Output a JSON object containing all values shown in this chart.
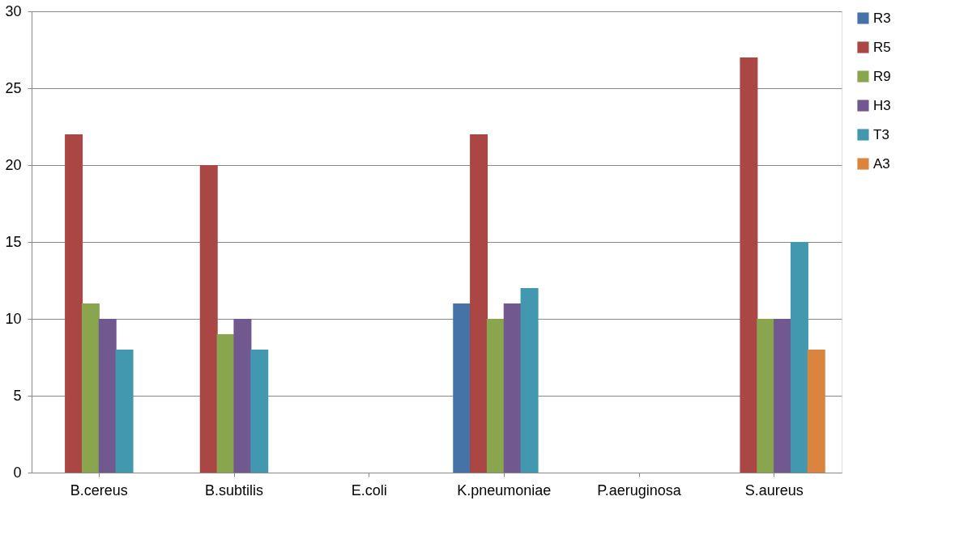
{
  "chart_data": {
    "type": "bar",
    "categories": [
      "B.cereus",
      "B.subtilis",
      "E.coli",
      "K.pneumoniae",
      "P.aeruginosa",
      "S.aureus"
    ],
    "series": [
      {
        "name": "R3",
        "color": "#4572a7",
        "values": [
          null,
          null,
          null,
          11,
          null,
          null
        ]
      },
      {
        "name": "R5",
        "color": "#aa4643",
        "values": [
          22,
          20,
          null,
          22,
          null,
          27
        ]
      },
      {
        "name": "R9",
        "color": "#89a54e",
        "values": [
          11,
          9,
          null,
          10,
          null,
          10
        ]
      },
      {
        "name": "H3",
        "color": "#71588f",
        "values": [
          10,
          10,
          null,
          11,
          null,
          10
        ]
      },
      {
        "name": "T3",
        "color": "#4198af",
        "values": [
          8,
          8,
          null,
          12,
          null,
          15
        ]
      },
      {
        "name": "A3",
        "color": "#db843d",
        "values": [
          null,
          null,
          null,
          null,
          null,
          8
        ]
      }
    ],
    "ylim": [
      0,
      30
    ],
    "yticks": [
      0,
      5,
      10,
      15,
      20,
      25,
      30
    ],
    "grid": "y",
    "legend": "right"
  }
}
